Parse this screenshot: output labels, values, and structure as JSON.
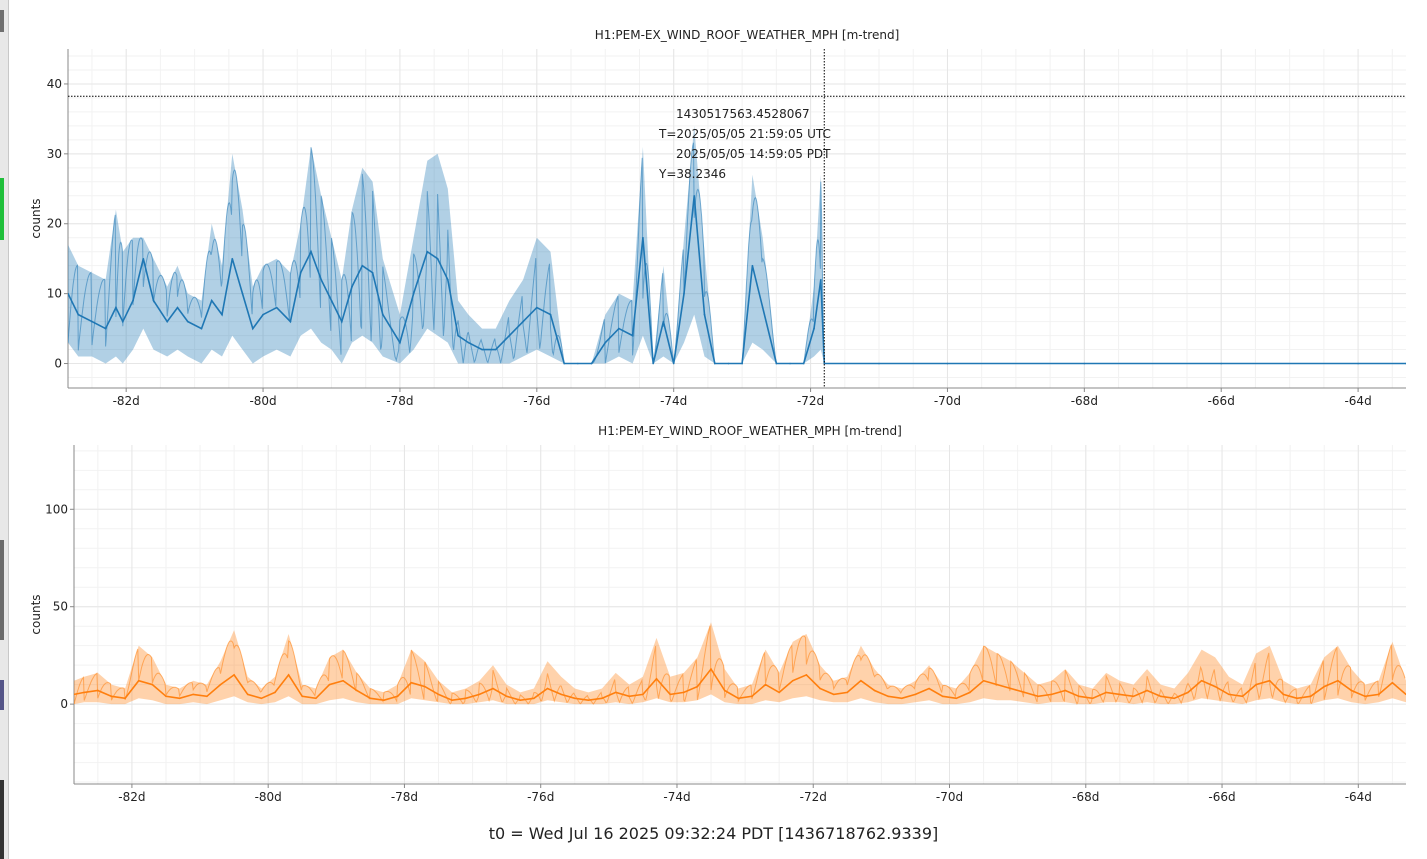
{
  "footer": {
    "t0": "t0 = Wed Jul 16 2025 09:32:24 PDT [1436718762.9339]"
  },
  "cursor": {
    "gps": "1430517563.4528067",
    "utc": "T=2025/05/05 21:59:05 UTC",
    "pdt": "2025/05/05 14:59:05 PDT",
    "y": "Y=38.2346",
    "x_value": -71.8,
    "y_value": 38.2346
  },
  "colors": {
    "series1": "#1f77b4",
    "series2": "#ff7f0e",
    "grid": "#e6e6e6",
    "cursor": "#000000"
  },
  "chart_data": [
    {
      "type": "line",
      "title": "H1:PEM-EX_WIND_ROOF_WEATHER_MPH [m-trend]",
      "xlabel": "",
      "ylabel": "counts",
      "xlim": [
        -82.85,
        -63.3
      ],
      "ylim": [
        -3.5,
        45
      ],
      "xticks": [
        -82,
        -80,
        -78,
        -76,
        -74,
        -72,
        -70,
        -68,
        -66,
        -64
      ],
      "xtick_labels": [
        "-82d",
        "-80d",
        "-78d",
        "-76d",
        "-74d",
        "-72d",
        "-70d",
        "-68d",
        "-66d",
        "-64d"
      ],
      "yticks": [
        0,
        10,
        20,
        30,
        40
      ],
      "ytick_labels": [
        "0",
        "10",
        "20",
        "30",
        "40"
      ],
      "grid": true,
      "series": [
        {
          "x": [
            -82.85,
            -82.7,
            -82.5,
            -82.3,
            -82.15,
            -82.05,
            -81.9,
            -81.75,
            -81.6,
            -81.4,
            -81.25,
            -81.1,
            -80.9,
            -80.75,
            -80.6,
            -80.45,
            -80.3,
            -80.15,
            -80.0,
            -79.8,
            -79.6,
            -79.45,
            -79.3,
            -79.15,
            -79.0,
            -78.85,
            -78.7,
            -78.55,
            -78.4,
            -78.25,
            -78.0,
            -77.8,
            -77.6,
            -77.45,
            -77.3,
            -77.15,
            -77.0,
            -76.8,
            -76.6,
            -76.4,
            -76.2,
            -76.0,
            -75.8,
            -75.6,
            -75.4,
            -75.2,
            -75.0,
            -74.8,
            -74.6,
            -74.45,
            -74.3,
            -74.15,
            -74.0,
            -73.85,
            -73.7,
            -73.55,
            -73.4,
            -73.2,
            -73.0,
            -72.85,
            -72.7,
            -72.5,
            -72.3,
            -72.1,
            -71.95,
            -71.85,
            -71.8,
            -71.0,
            -70.0,
            -68.0,
            -66.0,
            -64.0,
            -63.3
          ],
          "y": [
            10,
            7,
            6,
            5,
            8,
            6,
            9,
            15,
            9,
            6,
            8,
            6,
            5,
            9,
            7,
            15,
            10,
            5,
            7,
            8,
            6,
            13,
            16,
            12,
            9,
            6,
            11,
            14,
            13,
            7,
            3,
            10,
            16,
            15,
            12,
            4,
            3,
            2,
            2,
            4,
            6,
            8,
            7,
            0,
            0,
            0,
            3,
            5,
            4,
            18,
            0,
            6,
            0,
            10,
            24,
            7,
            0,
            0,
            0,
            14,
            8,
            0,
            0,
            0,
            5,
            12,
            0,
            0,
            0,
            0,
            0,
            0,
            0
          ],
          "upper": [
            17,
            14,
            13,
            12,
            22,
            16,
            18,
            18,
            15,
            11,
            14,
            10,
            9,
            20,
            14,
            30,
            22,
            11,
            14,
            15,
            13,
            20,
            31,
            24,
            18,
            12,
            22,
            28,
            26,
            15,
            7,
            18,
            29,
            30,
            25,
            9,
            7,
            5,
            5,
            9,
            12,
            18,
            16,
            0,
            0,
            0,
            7,
            10,
            9,
            31,
            0,
            14,
            0,
            18,
            34,
            16,
            0,
            0,
            0,
            27,
            18,
            0,
            0,
            0,
            11,
            27,
            0,
            0,
            0,
            0,
            0,
            0,
            0
          ],
          "lower": [
            3,
            1,
            1,
            0,
            1,
            0,
            2,
            5,
            2,
            1,
            2,
            1,
            0,
            2,
            1,
            4,
            2,
            0,
            1,
            2,
            1,
            4,
            5,
            3,
            2,
            0,
            3,
            4,
            3,
            1,
            0,
            2,
            5,
            4,
            3,
            0,
            0,
            0,
            0,
            0,
            1,
            2,
            1,
            0,
            0,
            0,
            0,
            1,
            0,
            4,
            0,
            1,
            0,
            3,
            7,
            1,
            0,
            0,
            0,
            3,
            2,
            0,
            0,
            0,
            1,
            2,
            0,
            0,
            0,
            0,
            0,
            0,
            0
          ]
        }
      ]
    },
    {
      "type": "line",
      "title": "H1:PEM-EY_WIND_ROOF_WEATHER_MPH [m-trend]",
      "xlabel": "",
      "ylabel": "counts",
      "xlim": [
        -82.85,
        -63.3
      ],
      "ylim": [
        -41,
        133
      ],
      "xticks": [
        -82,
        -80,
        -78,
        -76,
        -74,
        -72,
        -70,
        -68,
        -66,
        -64
      ],
      "xtick_labels": [
        "-82d",
        "-80d",
        "-78d",
        "-76d",
        "-74d",
        "-72d",
        "-70d",
        "-68d",
        "-66d",
        "-64d"
      ],
      "yticks": [
        0,
        50,
        100
      ],
      "ytick_labels": [
        "0",
        "50",
        "100"
      ],
      "grid": true,
      "series": [
        {
          "x": [
            -82.85,
            -82.7,
            -82.5,
            -82.3,
            -82.1,
            -81.9,
            -81.7,
            -81.5,
            -81.3,
            -81.1,
            -80.9,
            -80.7,
            -80.5,
            -80.3,
            -80.1,
            -79.9,
            -79.7,
            -79.5,
            -79.3,
            -79.1,
            -78.9,
            -78.7,
            -78.5,
            -78.3,
            -78.1,
            -77.9,
            -77.7,
            -77.5,
            -77.3,
            -77.1,
            -76.9,
            -76.7,
            -76.5,
            -76.3,
            -76.1,
            -75.9,
            -75.7,
            -75.5,
            -75.3,
            -75.1,
            -74.9,
            -74.7,
            -74.5,
            -74.3,
            -74.1,
            -73.9,
            -73.7,
            -73.5,
            -73.3,
            -73.1,
            -72.9,
            -72.7,
            -72.5,
            -72.3,
            -72.1,
            -71.9,
            -71.7,
            -71.5,
            -71.3,
            -71.1,
            -70.9,
            -70.7,
            -70.5,
            -70.3,
            -70.1,
            -69.9,
            -69.7,
            -69.5,
            -69.3,
            -69.1,
            -68.9,
            -68.7,
            -68.5,
            -68.3,
            -68.1,
            -67.9,
            -67.7,
            -67.5,
            -67.3,
            -67.1,
            -66.9,
            -66.7,
            -66.5,
            -66.3,
            -66.1,
            -65.9,
            -65.7,
            -65.5,
            -65.3,
            -65.1,
            -64.9,
            -64.7,
            -64.5,
            -64.3,
            -64.1,
            -63.9,
            -63.7,
            -63.5,
            -63.3
          ],
          "y": [
            5,
            6,
            7,
            4,
            3,
            12,
            10,
            4,
            3,
            5,
            4,
            10,
            15,
            5,
            3,
            6,
            15,
            4,
            3,
            10,
            12,
            7,
            3,
            2,
            4,
            11,
            9,
            5,
            2,
            3,
            5,
            8,
            4,
            2,
            3,
            8,
            5,
            3,
            2,
            3,
            6,
            4,
            5,
            13,
            5,
            6,
            9,
            18,
            7,
            3,
            4,
            10,
            6,
            12,
            15,
            8,
            5,
            6,
            12,
            7,
            4,
            3,
            5,
            8,
            4,
            3,
            6,
            12,
            10,
            8,
            6,
            4,
            5,
            7,
            4,
            3,
            6,
            5,
            4,
            7,
            4,
            3,
            6,
            12,
            9,
            5,
            4,
            10,
            12,
            5,
            3,
            4,
            9,
            12,
            7,
            4,
            5,
            11,
            5
          ],
          "upper": [
            12,
            14,
            16,
            10,
            8,
            30,
            24,
            10,
            8,
            12,
            10,
            22,
            38,
            14,
            8,
            14,
            36,
            10,
            8,
            24,
            28,
            16,
            8,
            6,
            10,
            28,
            22,
            12,
            6,
            8,
            12,
            20,
            10,
            6,
            8,
            22,
            14,
            8,
            6,
            8,
            16,
            10,
            14,
            34,
            14,
            16,
            24,
            42,
            18,
            8,
            10,
            28,
            16,
            32,
            36,
            20,
            12,
            14,
            30,
            18,
            10,
            8,
            12,
            20,
            10,
            8,
            16,
            30,
            26,
            22,
            16,
            10,
            12,
            18,
            10,
            8,
            16,
            12,
            10,
            18,
            10,
            8,
            16,
            28,
            24,
            14,
            10,
            26,
            30,
            12,
            8,
            10,
            24,
            30,
            18,
            10,
            12,
            32,
            12
          ],
          "lower": [
            0,
            1,
            1,
            0,
            0,
            3,
            2,
            0,
            0,
            1,
            0,
            2,
            4,
            1,
            0,
            1,
            4,
            0,
            0,
            2,
            3,
            1,
            0,
            0,
            0,
            3,
            2,
            1,
            0,
            0,
            1,
            2,
            0,
            0,
            0,
            2,
            1,
            0,
            0,
            0,
            1,
            0,
            1,
            3,
            1,
            1,
            2,
            5,
            1,
            0,
            0,
            2,
            1,
            3,
            4,
            2,
            1,
            1,
            3,
            1,
            0,
            0,
            1,
            2,
            0,
            0,
            1,
            3,
            2,
            2,
            1,
            0,
            1,
            1,
            0,
            0,
            1,
            1,
            0,
            1,
            0,
            0,
            1,
            3,
            2,
            1,
            0,
            2,
            3,
            1,
            0,
            0,
            2,
            3,
            1,
            0,
            1,
            3,
            1
          ]
        }
      ]
    }
  ]
}
